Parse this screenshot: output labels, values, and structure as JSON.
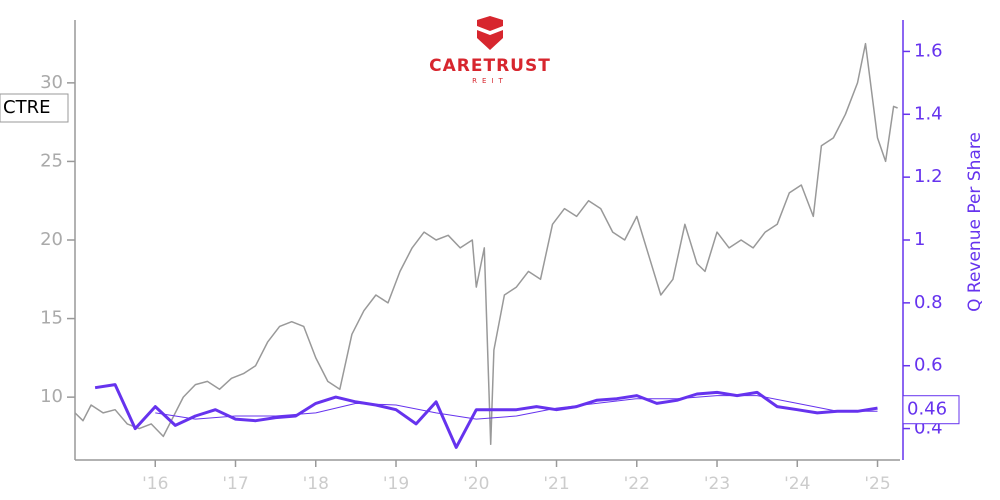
{
  "chart_data": {
    "type": "line",
    "logo": {
      "name": "CARETRUST",
      "sub": "REIT"
    },
    "ticker": "CTRE",
    "y2label": "Q Revenue Per Share",
    "last_value_label": 0.46,
    "xlim": [
      2015.0,
      2025.28
    ],
    "xticks": [
      {
        "value": 2016,
        "label": "'16"
      },
      {
        "value": 2017,
        "label": "'17"
      },
      {
        "value": 2018,
        "label": "'18"
      },
      {
        "value": 2019,
        "label": "'19"
      },
      {
        "value": 2020,
        "label": "'20"
      },
      {
        "value": 2021,
        "label": "'21"
      },
      {
        "value": 2022,
        "label": "'22"
      },
      {
        "value": 2023,
        "label": "'23"
      },
      {
        "value": 2024,
        "label": "'24"
      },
      {
        "value": 2025,
        "label": "'25"
      }
    ],
    "ylim": [
      6,
      34
    ],
    "yticks": [
      10,
      15,
      20,
      25,
      30
    ],
    "y2lim": [
      0.3,
      1.7
    ],
    "y2ticks": [
      0.4,
      0.6,
      0.8,
      1.0,
      1.2,
      1.4,
      1.6
    ],
    "series": [
      {
        "color": "#999999",
        "width": 1.5,
        "axis": "y",
        "x": [
          2015.0,
          2015.1,
          2015.2,
          2015.35,
          2015.5,
          2015.65,
          2015.8,
          2015.95,
          2016.1,
          2016.2,
          2016.35,
          2016.5,
          2016.65,
          2016.8,
          2016.95,
          2017.1,
          2017.25,
          2017.4,
          2017.55,
          2017.7,
          2017.85,
          2018.0,
          2018.15,
          2018.3,
          2018.45,
          2018.6,
          2018.75,
          2018.9,
          2019.05,
          2019.2,
          2019.35,
          2019.5,
          2019.65,
          2019.8,
          2019.95,
          2020.0,
          2020.1,
          2020.18,
          2020.22,
          2020.35,
          2020.5,
          2020.65,
          2020.8,
          2020.95,
          2021.1,
          2021.25,
          2021.4,
          2021.55,
          2021.7,
          2021.85,
          2022.0,
          2022.15,
          2022.3,
          2022.45,
          2022.6,
          2022.75,
          2022.85,
          2023.0,
          2023.15,
          2023.3,
          2023.45,
          2023.6,
          2023.75,
          2023.9,
          2024.05,
          2024.2,
          2024.3,
          2024.45,
          2024.6,
          2024.75,
          2024.85,
          2024.9,
          2025.0,
          2025.1,
          2025.2,
          2025.25
        ],
        "values": [
          9.0,
          8.5,
          9.5,
          9.0,
          9.2,
          8.3,
          8.0,
          8.3,
          7.5,
          8.5,
          10.0,
          10.8,
          11.0,
          10.5,
          11.2,
          11.5,
          12.0,
          13.5,
          14.5,
          14.8,
          14.5,
          12.5,
          11.0,
          10.5,
          14.0,
          15.5,
          16.5,
          16.0,
          18.0,
          19.5,
          20.5,
          20.0,
          20.3,
          19.5,
          20.0,
          17.0,
          19.5,
          7.0,
          13.0,
          16.5,
          17.0,
          18.0,
          17.5,
          21.0,
          22.0,
          21.5,
          22.5,
          22.0,
          20.5,
          20.0,
          21.5,
          19.0,
          16.5,
          17.5,
          21.0,
          18.5,
          18.0,
          20.5,
          19.5,
          20.0,
          19.5,
          20.5,
          21.0,
          23.0,
          23.5,
          21.5,
          26.0,
          26.5,
          28.0,
          30.0,
          32.5,
          30.5,
          26.5,
          25.0,
          28.5,
          28.4
        ]
      },
      {
        "color": "#6633ee",
        "width": 3,
        "axis": "y2",
        "x": [
          2015.25,
          2015.5,
          2015.75,
          2016.0,
          2016.25,
          2016.5,
          2016.75,
          2017.0,
          2017.25,
          2017.5,
          2017.75,
          2018.0,
          2018.25,
          2018.5,
          2018.75,
          2019.0,
          2019.25,
          2019.5,
          2019.75,
          2020.0,
          2020.25,
          2020.5,
          2020.75,
          2021.0,
          2021.25,
          2021.5,
          2021.75,
          2022.0,
          2022.25,
          2022.5,
          2022.75,
          2023.0,
          2023.25,
          2023.5,
          2023.75,
          2024.0,
          2024.25,
          2024.5,
          2024.75,
          2025.0
        ],
        "values": [
          0.53,
          0.54,
          0.4,
          0.47,
          0.41,
          0.44,
          0.46,
          0.43,
          0.425,
          0.435,
          0.44,
          0.48,
          0.5,
          0.485,
          0.475,
          0.46,
          0.415,
          0.485,
          0.34,
          0.46,
          0.46,
          0.46,
          0.47,
          0.46,
          0.47,
          0.49,
          0.495,
          0.505,
          0.48,
          0.49,
          0.51,
          0.515,
          0.505,
          0.515,
          0.47,
          0.46,
          0.45,
          0.455,
          0.455,
          0.465
        ]
      },
      {
        "color": "#6633ee",
        "width": 1,
        "axis": "y2",
        "x": [
          2016.0,
          2016.5,
          2017.0,
          2017.5,
          2018.0,
          2018.5,
          2019.0,
          2019.5,
          2020.0,
          2020.5,
          2021.0,
          2021.5,
          2022.0,
          2022.5,
          2023.0,
          2023.5,
          2024.0,
          2024.5,
          2025.0
        ],
        "values": [
          0.45,
          0.43,
          0.44,
          0.44,
          0.45,
          0.48,
          0.475,
          0.45,
          0.43,
          0.44,
          0.465,
          0.48,
          0.495,
          0.495,
          0.505,
          0.505,
          0.48,
          0.455,
          0.455
        ]
      }
    ]
  }
}
